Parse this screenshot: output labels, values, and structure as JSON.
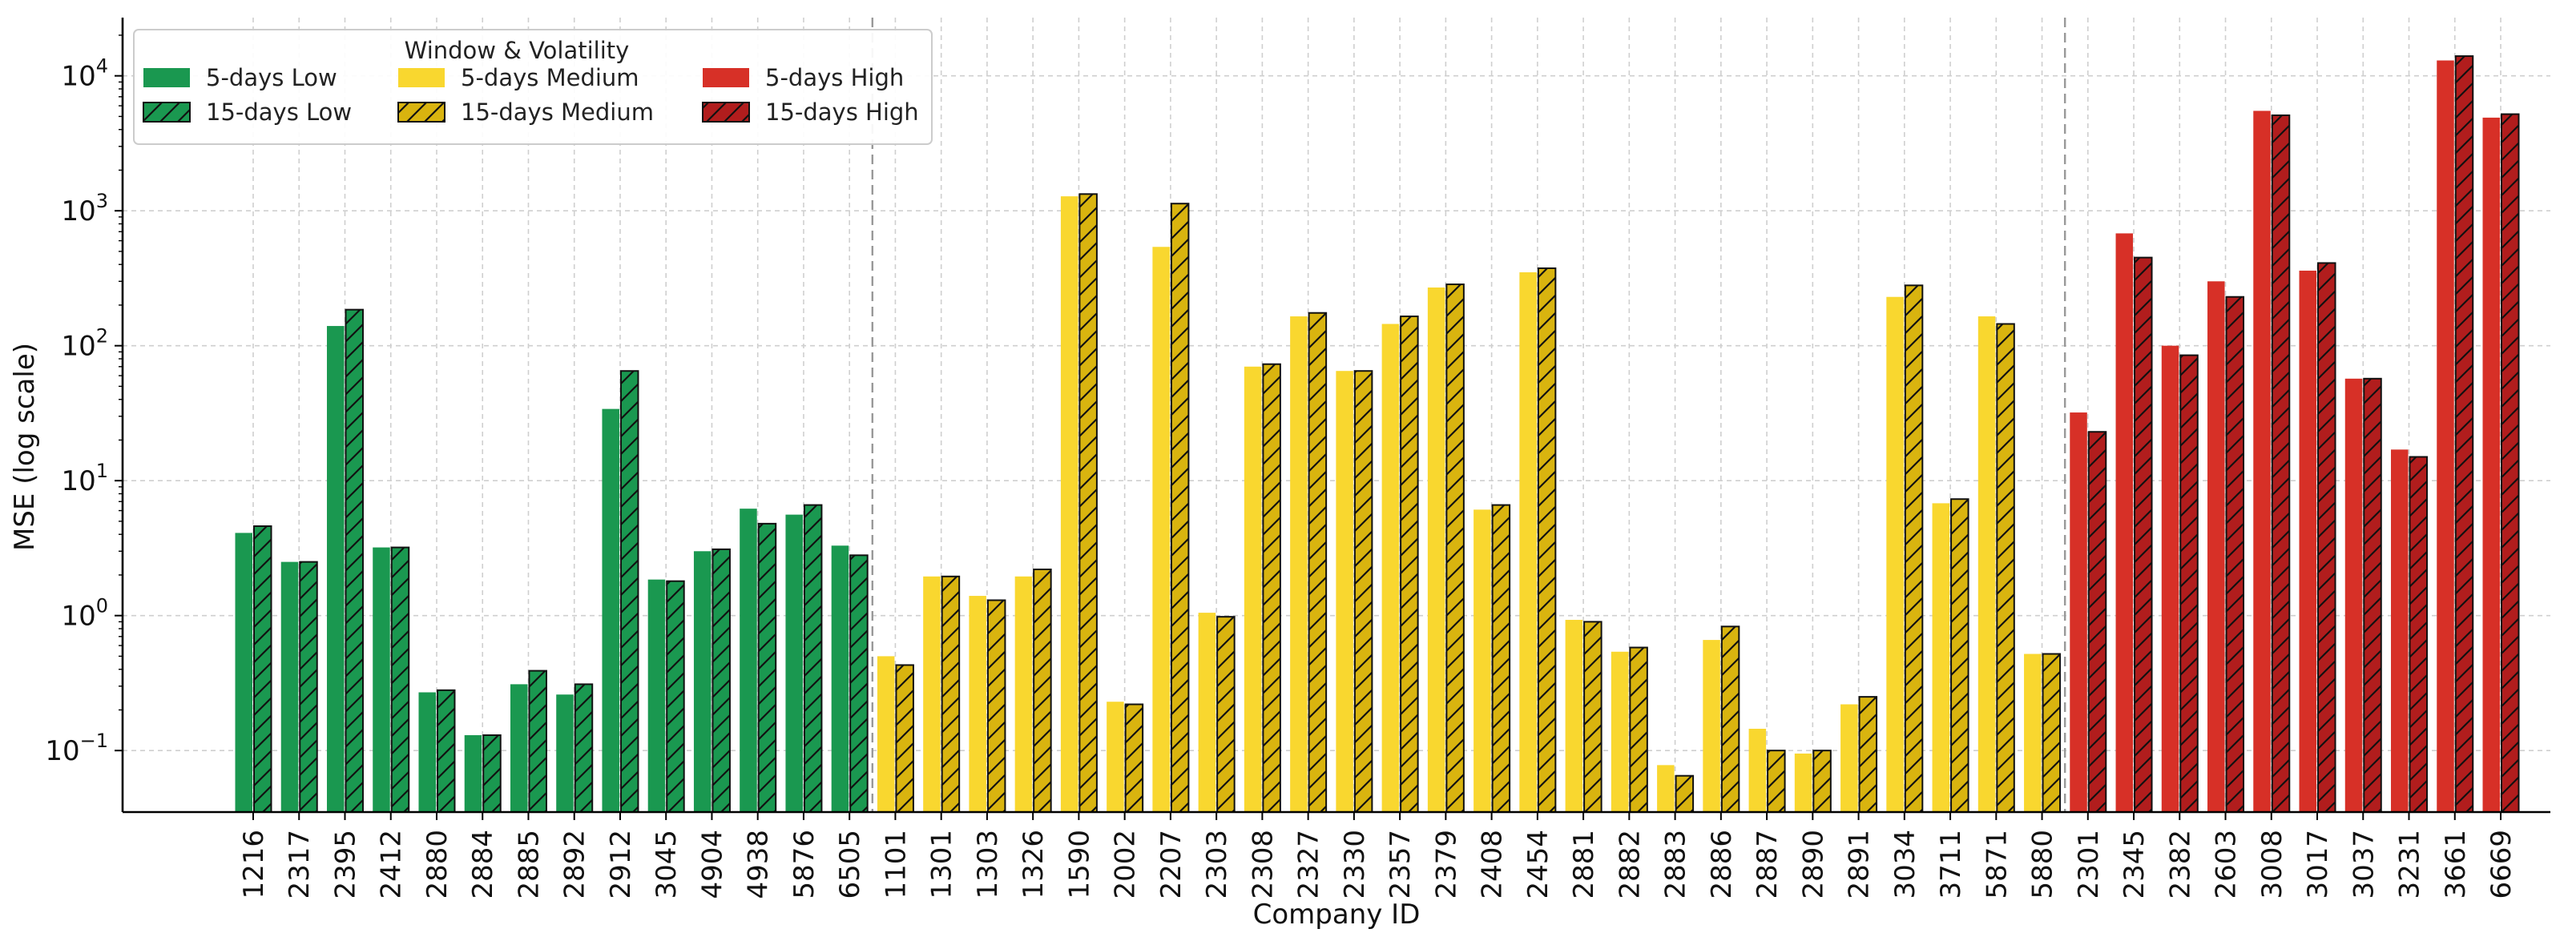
{
  "chart_data": {
    "type": "bar",
    "xlabel": "Company ID",
    "ylabel": "MSE (log scale)",
    "yscale": "log",
    "ylim": [
      0.035,
      27000
    ],
    "yticks": [
      {
        "value": 0.1,
        "base": "10",
        "exp": "−1"
      },
      {
        "value": 1,
        "base": "10",
        "exp": "0"
      },
      {
        "value": 10,
        "base": "10",
        "exp": "1"
      },
      {
        "value": 100,
        "base": "10",
        "exp": "2"
      },
      {
        "value": 1000,
        "base": "10",
        "exp": "3"
      },
      {
        "value": 10000,
        "base": "10",
        "exp": "4"
      }
    ],
    "grid": true,
    "legend": {
      "title": "Window & Volatility",
      "placement": "top-left",
      "entries": [
        {
          "label": "5-days Low",
          "group": "Low",
          "window": "5",
          "color": "#1a9850"
        },
        {
          "label": "15-days Low",
          "group": "Low",
          "window": "15",
          "color": "#1a9850"
        },
        {
          "label": "5-days Medium",
          "group": "Medium",
          "window": "5",
          "color": "#f9d72f"
        },
        {
          "label": "15-days Medium",
          "group": "Medium",
          "window": "15",
          "color": "#d9b40f"
        },
        {
          "label": "5-days High",
          "group": "High",
          "window": "5",
          "color": "#d73027"
        },
        {
          "label": "15-days High",
          "group": "High",
          "window": "15",
          "color": "#b11d1d"
        }
      ]
    },
    "colors": {
      "Low": {
        "5": "#1a9850",
        "15": "#1a9850"
      },
      "Medium": {
        "5": "#f9d72f",
        "15": "#d9b40f"
      },
      "High": {
        "5": "#d73027",
        "15": "#b11d1d"
      }
    },
    "group_dividers_after": [
      "6505",
      "5880"
    ],
    "companies": [
      {
        "id": "1216",
        "group": "Low",
        "v5": 4.1,
        "v15": 4.6
      },
      {
        "id": "2317",
        "group": "Low",
        "v5": 2.5,
        "v15": 2.5
      },
      {
        "id": "2395",
        "group": "Low",
        "v5": 140,
        "v15": 185
      },
      {
        "id": "2412",
        "group": "Low",
        "v5": 3.2,
        "v15": 3.2
      },
      {
        "id": "2880",
        "group": "Low",
        "v5": 0.27,
        "v15": 0.28
      },
      {
        "id": "2884",
        "group": "Low",
        "v5": 0.13,
        "v15": 0.13
      },
      {
        "id": "2885",
        "group": "Low",
        "v5": 0.31,
        "v15": 0.39
      },
      {
        "id": "2892",
        "group": "Low",
        "v5": 0.26,
        "v15": 0.31
      },
      {
        "id": "2912",
        "group": "Low",
        "v5": 34,
        "v15": 65
      },
      {
        "id": "3045",
        "group": "Low",
        "v5": 1.85,
        "v15": 1.8
      },
      {
        "id": "4904",
        "group": "Low",
        "v5": 3.0,
        "v15": 3.1
      },
      {
        "id": "4938",
        "group": "Low",
        "v5": 6.2,
        "v15": 4.8
      },
      {
        "id": "5876",
        "group": "Low",
        "v5": 5.6,
        "v15": 6.6
      },
      {
        "id": "6505",
        "group": "Low",
        "v5": 3.3,
        "v15": 2.8
      },
      {
        "id": "1101",
        "group": "Medium",
        "v5": 0.5,
        "v15": 0.43
      },
      {
        "id": "1301",
        "group": "Medium",
        "v5": 1.95,
        "v15": 1.95
      },
      {
        "id": "1303",
        "group": "Medium",
        "v5": 1.4,
        "v15": 1.3
      },
      {
        "id": "1326",
        "group": "Medium",
        "v5": 1.95,
        "v15": 2.2
      },
      {
        "id": "1590",
        "group": "Medium",
        "v5": 1280,
        "v15": 1330
      },
      {
        "id": "2002",
        "group": "Medium",
        "v5": 0.23,
        "v15": 0.22
      },
      {
        "id": "2207",
        "group": "Medium",
        "v5": 540,
        "v15": 1130
      },
      {
        "id": "2303",
        "group": "Medium",
        "v5": 1.05,
        "v15": 0.98
      },
      {
        "id": "2308",
        "group": "Medium",
        "v5": 70,
        "v15": 73
      },
      {
        "id": "2327",
        "group": "Medium",
        "v5": 165,
        "v15": 175
      },
      {
        "id": "2330",
        "group": "Medium",
        "v5": 65,
        "v15": 65
      },
      {
        "id": "2357",
        "group": "Medium",
        "v5": 145,
        "v15": 165
      },
      {
        "id": "2379",
        "group": "Medium",
        "v5": 270,
        "v15": 285
      },
      {
        "id": "2408",
        "group": "Medium",
        "v5": 6.1,
        "v15": 6.6
      },
      {
        "id": "2454",
        "group": "Medium",
        "v5": 350,
        "v15": 375
      },
      {
        "id": "2881",
        "group": "Medium",
        "v5": 0.93,
        "v15": 0.9
      },
      {
        "id": "2882",
        "group": "Medium",
        "v5": 0.54,
        "v15": 0.58
      },
      {
        "id": "2883",
        "group": "Medium",
        "v5": 0.078,
        "v15": 0.065
      },
      {
        "id": "2886",
        "group": "Medium",
        "v5": 0.66,
        "v15": 0.83
      },
      {
        "id": "2887",
        "group": "Medium",
        "v5": 0.145,
        "v15": 0.1
      },
      {
        "id": "2890",
        "group": "Medium",
        "v5": 0.095,
        "v15": 0.1
      },
      {
        "id": "2891",
        "group": "Medium",
        "v5": 0.22,
        "v15": 0.25
      },
      {
        "id": "3034",
        "group": "Medium",
        "v5": 230,
        "v15": 280
      },
      {
        "id": "3711",
        "group": "Medium",
        "v5": 6.8,
        "v15": 7.3
      },
      {
        "id": "5871",
        "group": "Medium",
        "v5": 165,
        "v15": 145
      },
      {
        "id": "5880",
        "group": "Medium",
        "v5": 0.52,
        "v15": 0.52
      },
      {
        "id": "2301",
        "group": "High",
        "v5": 32,
        "v15": 23
      },
      {
        "id": "2345",
        "group": "High",
        "v5": 680,
        "v15": 450
      },
      {
        "id": "2382",
        "group": "High",
        "v5": 100,
        "v15": 85
      },
      {
        "id": "2603",
        "group": "High",
        "v5": 300,
        "v15": 230
      },
      {
        "id": "3008",
        "group": "High",
        "v5": 5500,
        "v15": 5100
      },
      {
        "id": "3017",
        "group": "High",
        "v5": 360,
        "v15": 410
      },
      {
        "id": "3037",
        "group": "High",
        "v5": 57,
        "v15": 57
      },
      {
        "id": "3231",
        "group": "High",
        "v5": 17,
        "v15": 15
      },
      {
        "id": "3661",
        "group": "High",
        "v5": 13000,
        "v15": 14000
      },
      {
        "id": "6669",
        "group": "High",
        "v5": 4900,
        "v15": 5200
      }
    ]
  }
}
